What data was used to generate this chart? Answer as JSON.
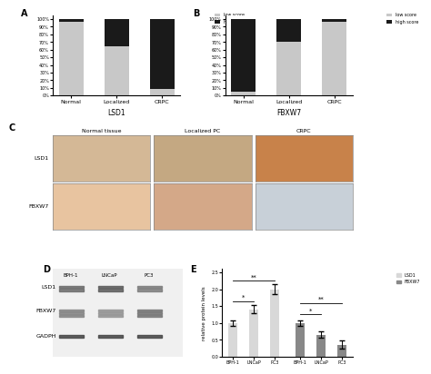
{
  "panel_A": {
    "categories": [
      "Normal",
      "Localized",
      "CRPC"
    ],
    "low_score": [
      97,
      65,
      8
    ],
    "high_score": [
      3,
      35,
      92
    ],
    "xlabel": "LSD1",
    "yticks": [
      0,
      10,
      20,
      30,
      40,
      50,
      60,
      70,
      80,
      90,
      100
    ],
    "ytick_labels": [
      "0%",
      "10%",
      "20%",
      "30%",
      "40%",
      "50%",
      "60%",
      "70%",
      "80%",
      "90%",
      "100%"
    ]
  },
  "panel_B": {
    "categories": [
      "Normal",
      "Localized",
      "CRPC"
    ],
    "low_score": [
      5,
      70,
      97
    ],
    "high_score": [
      95,
      30,
      3
    ],
    "xlabel": "FBXW7",
    "yticks": [
      0,
      10,
      20,
      30,
      40,
      50,
      60,
      70,
      80,
      90,
      100
    ],
    "ytick_labels": [
      "0%",
      "10%",
      "20%",
      "30%",
      "40%",
      "50%",
      "60%",
      "70%",
      "80%",
      "90%",
      "100%"
    ]
  },
  "panel_E": {
    "groups": [
      "BPH-1",
      "LNCaP",
      "PC3",
      "BPH-1",
      "LNCaP",
      "PC3"
    ],
    "lsd1_values": [
      1.0,
      1.4,
      2.0,
      null,
      null,
      null
    ],
    "fbxw7_values": [
      null,
      null,
      null,
      1.0,
      0.65,
      0.35
    ],
    "lsd1_errors": [
      0.08,
      0.12,
      0.15,
      null,
      null,
      null
    ],
    "fbxw7_errors": [
      null,
      null,
      null,
      0.08,
      0.1,
      0.12
    ],
    "lsd1_color": "#d8d8d8",
    "fbxw7_color": "#888888",
    "ylabel": "relative protein levels"
  },
  "colors": {
    "low_score": "#c8c8c8",
    "high_score": "#1a1a1a",
    "background": "#ffffff"
  },
  "tissue_images": {
    "col_labels": [
      "Normal tissue",
      "Localized PC",
      "CRPC"
    ],
    "row_labels": [
      "LSD1",
      "FBXW7"
    ]
  },
  "western_blot": {
    "row_labels": [
      "LSD1",
      "FBXW7",
      "GADPH"
    ],
    "col_labels": [
      "BPH-1",
      "LNCaP",
      "PC3"
    ]
  }
}
